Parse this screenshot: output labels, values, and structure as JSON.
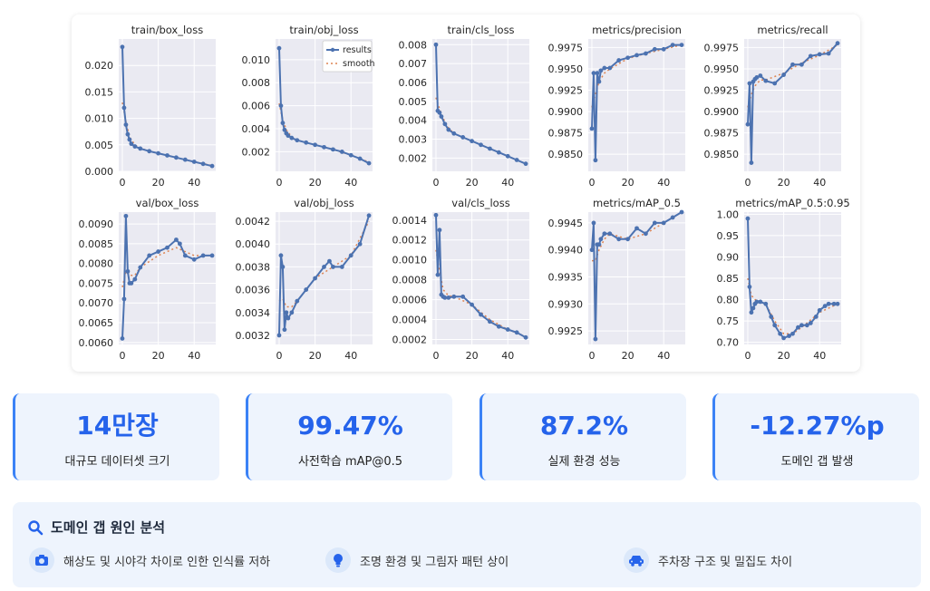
{
  "chart_data": [
    {
      "type": "line",
      "title": "train/box_loss",
      "xlim": [
        -2,
        52
      ],
      "ylim": [
        0,
        0.025
      ],
      "xticks": [
        0,
        20,
        40
      ],
      "yticks": [
        0.0,
        0.005,
        0.01,
        0.015,
        0.02
      ],
      "ytick_labels": [
        "0.000",
        "0.005",
        "0.010",
        "0.015",
        "0.020"
      ],
      "series": [
        {
          "name": "results",
          "x": [
            0,
            1,
            2,
            3,
            4,
            5,
            7,
            10,
            15,
            20,
            25,
            30,
            35,
            40,
            45,
            50
          ],
          "y": [
            0.0235,
            0.012,
            0.0088,
            0.007,
            0.006,
            0.0052,
            0.0047,
            0.0043,
            0.0038,
            0.0034,
            0.003,
            0.0026,
            0.0022,
            0.0018,
            0.0014,
            0.001
          ]
        },
        {
          "name": "smooth",
          "x": [
            0,
            2,
            4,
            7,
            10,
            15,
            20,
            30,
            40,
            50
          ],
          "y": [
            0.013,
            0.0095,
            0.0065,
            0.005,
            0.0044,
            0.0038,
            0.0034,
            0.0026,
            0.0018,
            0.0011
          ]
        }
      ]
    },
    {
      "type": "line",
      "title": "train/obj_loss",
      "xlim": [
        -2,
        52
      ],
      "ylim": [
        0.0003,
        0.0118
      ],
      "xticks": [
        0,
        20,
        40
      ],
      "yticks": [
        0.002,
        0.004,
        0.006,
        0.008,
        0.01
      ],
      "ytick_labels": [
        "0.002",
        "0.004",
        "0.006",
        "0.008",
        "0.010"
      ],
      "legend": [
        "results",
        "smooth"
      ],
      "series": [
        {
          "name": "results",
          "x": [
            0,
            1,
            2,
            3,
            4,
            5,
            7,
            10,
            15,
            20,
            25,
            30,
            35,
            40,
            45,
            50
          ],
          "y": [
            0.011,
            0.006,
            0.0045,
            0.0039,
            0.0036,
            0.0034,
            0.0032,
            0.003,
            0.0028,
            0.0026,
            0.0024,
            0.0022,
            0.002,
            0.0017,
            0.0014,
            0.001
          ]
        },
        {
          "name": "smooth",
          "x": [
            0,
            2,
            4,
            7,
            10,
            20,
            30,
            40,
            50
          ],
          "y": [
            0.0062,
            0.0048,
            0.0039,
            0.0033,
            0.003,
            0.0026,
            0.0022,
            0.0017,
            0.0011
          ]
        }
      ]
    },
    {
      "type": "line",
      "title": "train/cls_loss",
      "xlim": [
        -2,
        52
      ],
      "ylim": [
        0.0013,
        0.0083
      ],
      "xticks": [
        0,
        20,
        40
      ],
      "yticks": [
        0.002,
        0.003,
        0.004,
        0.005,
        0.006,
        0.007,
        0.008
      ],
      "ytick_labels": [
        "0.002",
        "0.003",
        "0.004",
        "0.005",
        "0.006",
        "0.007",
        "0.008"
      ],
      "series": [
        {
          "name": "results",
          "x": [
            0,
            1,
            2,
            3,
            5,
            7,
            10,
            15,
            20,
            25,
            30,
            35,
            40,
            45,
            50
          ],
          "y": [
            0.008,
            0.0045,
            0.0044,
            0.0042,
            0.0038,
            0.0035,
            0.0033,
            0.0031,
            0.0029,
            0.0027,
            0.0025,
            0.0023,
            0.0021,
            0.0019,
            0.0017
          ]
        },
        {
          "name": "smooth",
          "x": [
            0,
            2,
            4,
            7,
            10,
            20,
            30,
            40,
            50
          ],
          "y": [
            0.0052,
            0.0046,
            0.0041,
            0.0036,
            0.0033,
            0.0029,
            0.0025,
            0.0021,
            0.0017
          ]
        }
      ]
    },
    {
      "type": "line",
      "title": "metrics/precision",
      "xlim": [
        -2,
        52
      ],
      "ylim": [
        0.983,
        0.9985
      ],
      "xticks": [
        0,
        20,
        40
      ],
      "yticks": [
        0.985,
        0.9875,
        0.99,
        0.9925,
        0.995,
        0.9975
      ],
      "ytick_labels": [
        "0.9850",
        "0.9875",
        "0.9900",
        "0.9925",
        "0.9950",
        "0.9975"
      ],
      "series": [
        {
          "name": "results",
          "x": [
            0,
            1,
            2,
            3,
            4,
            5,
            7,
            10,
            15,
            20,
            25,
            30,
            35,
            40,
            45,
            50
          ],
          "y": [
            0.988,
            0.9945,
            0.9843,
            0.9945,
            0.9935,
            0.9948,
            0.9951,
            0.9951,
            0.996,
            0.9963,
            0.9966,
            0.9968,
            0.9973,
            0.9973,
            0.9978,
            0.9978
          ]
        },
        {
          "name": "smooth",
          "x": [
            0,
            2,
            4,
            7,
            10,
            20,
            30,
            40,
            50
          ],
          "y": [
            0.9905,
            0.992,
            0.9935,
            0.9945,
            0.995,
            0.9962,
            0.9968,
            0.9973,
            0.9978
          ]
        }
      ]
    },
    {
      "type": "line",
      "title": "metrics/recall",
      "xlim": [
        -2,
        52
      ],
      "ylim": [
        0.983,
        0.9985
      ],
      "xticks": [
        0,
        20,
        40
      ],
      "yticks": [
        0.985,
        0.9875,
        0.99,
        0.9925,
        0.995,
        0.9975
      ],
      "ytick_labels": [
        "0.9850",
        "0.9875",
        "0.9900",
        "0.9925",
        "0.9950",
        "0.9975"
      ],
      "series": [
        {
          "name": "results",
          "x": [
            0,
            1,
            2,
            3,
            4,
            5,
            7,
            10,
            15,
            20,
            25,
            30,
            35,
            40,
            45,
            50
          ],
          "y": [
            0.9885,
            0.9933,
            0.984,
            0.9935,
            0.9938,
            0.994,
            0.9942,
            0.9936,
            0.9933,
            0.9943,
            0.9955,
            0.9955,
            0.9965,
            0.9967,
            0.9968,
            0.998
          ]
        },
        {
          "name": "smooth",
          "x": [
            0,
            2,
            4,
            7,
            10,
            20,
            30,
            40,
            50
          ],
          "y": [
            0.9905,
            0.992,
            0.993,
            0.9937,
            0.9937,
            0.9945,
            0.9957,
            0.9966,
            0.9978
          ]
        }
      ]
    },
    {
      "type": "line",
      "title": "val/box_loss",
      "xlim": [
        -2,
        52
      ],
      "ylim": [
        0.00595,
        0.0093
      ],
      "xticks": [
        0,
        20,
        40
      ],
      "yticks": [
        0.006,
        0.0065,
        0.007,
        0.0075,
        0.008,
        0.0085,
        0.009
      ],
      "ytick_labels": [
        "0.0060",
        "0.0065",
        "0.0070",
        "0.0075",
        "0.0080",
        "0.0085",
        "0.0090"
      ],
      "series": [
        {
          "name": "results",
          "x": [
            0,
            1,
            2,
            3,
            4,
            5,
            7,
            10,
            15,
            20,
            25,
            30,
            32,
            35,
            40,
            45,
            50
          ],
          "y": [
            0.0061,
            0.0071,
            0.0092,
            0.0078,
            0.0075,
            0.0075,
            0.0076,
            0.0079,
            0.0082,
            0.0083,
            0.0084,
            0.0086,
            0.0085,
            0.0082,
            0.0081,
            0.0082,
            0.0082
          ]
        },
        {
          "name": "smooth",
          "x": [
            0,
            2,
            4,
            7,
            10,
            20,
            30,
            40,
            50
          ],
          "y": [
            0.0074,
            0.0078,
            0.0077,
            0.0077,
            0.0079,
            0.0082,
            0.0084,
            0.0082,
            0.0082
          ]
        }
      ]
    },
    {
      "type": "line",
      "title": "val/obj_loss",
      "xlim": [
        -2,
        52
      ],
      "ylim": [
        0.00312,
        0.00428
      ],
      "xticks": [
        0,
        20,
        40
      ],
      "yticks": [
        0.0032,
        0.0034,
        0.0036,
        0.0038,
        0.004,
        0.0042
      ],
      "ytick_labels": [
        "0.0032",
        "0.0034",
        "0.0036",
        "0.0038",
        "0.0040",
        "0.0042"
      ],
      "series": [
        {
          "name": "results",
          "x": [
            0,
            1,
            2,
            3,
            4,
            5,
            7,
            10,
            15,
            20,
            25,
            28,
            30,
            35,
            40,
            45,
            50
          ],
          "y": [
            0.0032,
            0.0039,
            0.0038,
            0.00325,
            0.0034,
            0.00335,
            0.0034,
            0.0035,
            0.0036,
            0.0037,
            0.0038,
            0.00385,
            0.0038,
            0.0038,
            0.0039,
            0.004,
            0.00425
          ]
        },
        {
          "name": "smooth",
          "x": [
            0,
            2,
            4,
            7,
            10,
            20,
            30,
            40,
            50
          ],
          "y": [
            0.0035,
            0.00352,
            0.00345,
            0.00345,
            0.0035,
            0.0037,
            0.0038,
            0.0039,
            0.0042
          ]
        }
      ]
    },
    {
      "type": "line",
      "title": "val/cls_loss",
      "xlim": [
        -2,
        52
      ],
      "ylim": [
        0.00015,
        0.00148
      ],
      "xticks": [
        0,
        20,
        40
      ],
      "yticks": [
        0.0002,
        0.0004,
        0.0006,
        0.0008,
        0.001,
        0.0012,
        0.0014
      ],
      "ytick_labels": [
        "0.0002",
        "0.0004",
        "0.0006",
        "0.0008",
        "0.0010",
        "0.0012",
        "0.0014"
      ],
      "series": [
        {
          "name": "results",
          "x": [
            0,
            1,
            2,
            3,
            4,
            5,
            7,
            10,
            15,
            20,
            25,
            30,
            35,
            40,
            45,
            50
          ],
          "y": [
            0.00145,
            0.00085,
            0.0013,
            0.00065,
            0.00063,
            0.00062,
            0.00062,
            0.00063,
            0.00063,
            0.00055,
            0.00045,
            0.00038,
            0.00033,
            0.0003,
            0.00027,
            0.00022
          ]
        },
        {
          "name": "smooth",
          "x": [
            0,
            2,
            4,
            7,
            10,
            20,
            30,
            40,
            50
          ],
          "y": [
            0.0011,
            0.0009,
            0.0007,
            0.00064,
            0.00063,
            0.00055,
            0.0004,
            0.0003,
            0.00023
          ]
        }
      ]
    },
    {
      "type": "line",
      "title": "metrics/mAP_0.5",
      "xlim": [
        -2,
        52
      ],
      "ylim": [
        0.99225,
        0.9947
      ],
      "xticks": [
        0,
        20,
        40
      ],
      "yticks": [
        0.9925,
        0.993,
        0.9935,
        0.994,
        0.9945
      ],
      "ytick_labels": [
        "0.9925",
        "0.9930",
        "0.9935",
        "0.9940",
        "0.9945"
      ],
      "series": [
        {
          "name": "results",
          "x": [
            0,
            1,
            2,
            3,
            4,
            5,
            7,
            10,
            15,
            20,
            25,
            30,
            35,
            40,
            45,
            50
          ],
          "y": [
            0.994,
            0.9945,
            0.99235,
            0.9941,
            0.9941,
            0.9942,
            0.9943,
            0.9943,
            0.9942,
            0.9942,
            0.9944,
            0.9943,
            0.9945,
            0.9945,
            0.9946,
            0.9947
          ]
        },
        {
          "name": "smooth",
          "x": [
            0,
            2,
            4,
            7,
            10,
            20,
            30,
            40,
            50
          ],
          "y": [
            0.9938,
            0.9938,
            0.994,
            0.9942,
            0.9943,
            0.9942,
            0.9943,
            0.9945,
            0.9947
          ]
        }
      ]
    },
    {
      "type": "line",
      "title": "metrics/mAP_0.5:0.95",
      "xlim": [
        -2,
        52
      ],
      "ylim": [
        0.695,
        1.005
      ],
      "xticks": [
        0,
        20,
        40
      ],
      "yticks": [
        0.7,
        0.75,
        0.8,
        0.85,
        0.9,
        0.95,
        1.0
      ],
      "ytick_labels": [
        "0.70",
        "0.75",
        "0.80",
        "0.85",
        "0.90",
        "0.95",
        "1.00"
      ],
      "series": [
        {
          "name": "results",
          "x": [
            0,
            1,
            2,
            3,
            4,
            5,
            7,
            10,
            13,
            15,
            18,
            20,
            23,
            25,
            28,
            30,
            33,
            35,
            38,
            40,
            43,
            45,
            48,
            50
          ],
          "y": [
            0.99,
            0.83,
            0.77,
            0.78,
            0.79,
            0.795,
            0.795,
            0.79,
            0.76,
            0.74,
            0.72,
            0.71,
            0.715,
            0.72,
            0.735,
            0.74,
            0.74,
            0.745,
            0.76,
            0.775,
            0.785,
            0.79,
            0.79,
            0.79
          ]
        },
        {
          "name": "smooth",
          "x": [
            0,
            2,
            4,
            7,
            10,
            15,
            20,
            25,
            30,
            40,
            50
          ],
          "y": [
            0.85,
            0.81,
            0.8,
            0.795,
            0.79,
            0.75,
            0.72,
            0.72,
            0.735,
            0.77,
            0.79
          ]
        }
      ]
    }
  ],
  "stats": [
    {
      "value": "14만장",
      "label": "대규모 데이터셋 크기"
    },
    {
      "value": "99.47%",
      "label": "사전학습 mAP@0.5"
    },
    {
      "value": "87.2%",
      "label": "실제 환경 성능"
    },
    {
      "value": "-12.27%p",
      "label": "도메인 갭 발생"
    }
  ],
  "analysis": {
    "title": "도메인 갭 원인 분석",
    "title_icon": "search-icon",
    "causes": [
      {
        "icon": "camera-icon",
        "text": "해상도 및 시야각 차이로 인한 인식률 저하"
      },
      {
        "icon": "lightbulb-icon",
        "text": "조명 환경 및 그림자 패턴 상이"
      },
      {
        "icon": "car-icon",
        "text": "주차장 구조 및 밀집도 차이"
      }
    ]
  },
  "colors": {
    "accent": "#2563eb",
    "series": "#4c72b0",
    "smooth": "#dd8452",
    "plot_bg": "#eaeaf2"
  }
}
